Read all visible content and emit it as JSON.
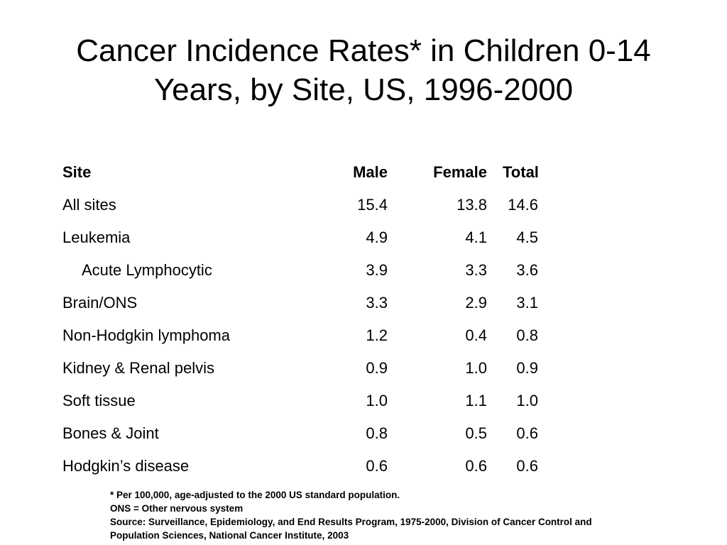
{
  "title": {
    "line1": "Cancer Incidence Rates* in Children 0-14",
    "line2": "Years, by Site, US, 1996-2000"
  },
  "table": {
    "headers": {
      "site": "Site",
      "male": "Male",
      "female": "Female",
      "total": "Total"
    },
    "rows": [
      {
        "site": "All sites",
        "male": "15.4",
        "female": "13.8",
        "total": "14.6",
        "indent": false
      },
      {
        "site": "Leukemia",
        "male": "4.9",
        "female": "4.1",
        "total": "4.5",
        "indent": false
      },
      {
        "site": "Acute Lymphocytic",
        "male": "3.9",
        "female": "3.3",
        "total": "3.6",
        "indent": true
      },
      {
        "site": "Brain/ONS",
        "male": "3.3",
        "female": "2.9",
        "total": "3.1",
        "indent": false
      },
      {
        "site": "Non-Hodgkin lymphoma",
        "male": "1.2",
        "female": "0.4",
        "total": "0.8",
        "indent": false
      },
      {
        "site": "Kidney & Renal pelvis",
        "male": "0.9",
        "female": "1.0",
        "total": "0.9",
        "indent": false
      },
      {
        "site": "Soft tissue",
        "male": "1.0",
        "female": "1.1",
        "total": "1.0",
        "indent": false
      },
      {
        "site": "Bones & Joint",
        "male": "0.8",
        "female": "0.5",
        "total": "0.6",
        "indent": false
      },
      {
        "site": "Hodgkin’s disease",
        "male": "0.6",
        "female": "0.6",
        "total": "0.6",
        "indent": false
      }
    ]
  },
  "footnotes": {
    "line1": "* Per 100,000, age-adjusted to the 2000 US standard population.",
    "line2": "ONS = Other nervous system",
    "line3": "Source: Surveillance, Epidemiology, and End Results Program, 1975-2000, Division of Cancer Control and",
    "line4": "Population Sciences, National Cancer Institute, 2003"
  }
}
